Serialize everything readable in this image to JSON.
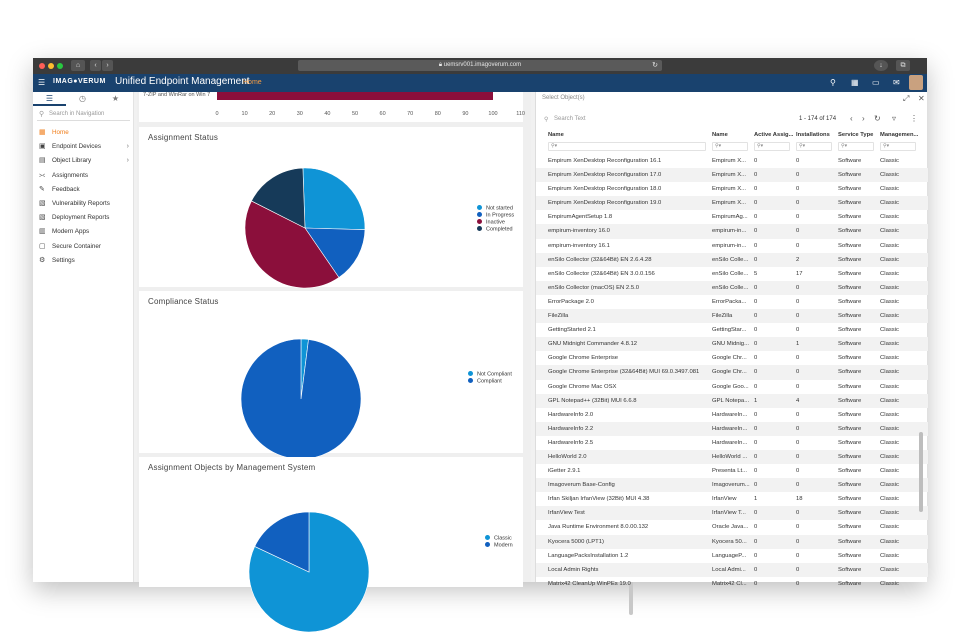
{
  "browser": {
    "url": "uemsrv001.imagoverum.com"
  },
  "header": {
    "logo": "IMAG●VERUM",
    "app_title": "Unified Endpoint Management",
    "home_link": "Home",
    "bg_color": "#19426e"
  },
  "sidebar": {
    "search_placeholder": "Search in Navigation",
    "items": [
      {
        "label": "Home",
        "icon": "home-icon",
        "glyph": "▦",
        "active": true
      },
      {
        "label": "Endpoint Devices",
        "icon": "devices-icon",
        "glyph": "▣",
        "chevron": true
      },
      {
        "label": "Object Library",
        "icon": "library-icon",
        "glyph": "▤",
        "chevron": true
      },
      {
        "label": "Assignments",
        "icon": "share-icon",
        "glyph": "⪥"
      },
      {
        "label": "Feedback",
        "icon": "feedback-icon",
        "glyph": "✎"
      },
      {
        "label": "Vulnerability Reports",
        "icon": "report-icon",
        "glyph": "▧"
      },
      {
        "label": "Deployment Reports",
        "icon": "report-icon",
        "glyph": "▧"
      },
      {
        "label": "Modern Apps",
        "icon": "apps-icon",
        "glyph": "▥"
      },
      {
        "label": "Secure Container",
        "icon": "container-icon",
        "glyph": "▢"
      },
      {
        "label": "Settings",
        "icon": "gear-icon",
        "glyph": "⚙"
      }
    ]
  },
  "top_chart": {
    "label": "7-ZIP and WinRar on Win 7",
    "ticks": [
      "0",
      "10",
      "20",
      "30",
      "40",
      "50",
      "60",
      "70",
      "80",
      "90",
      "100",
      "110"
    ]
  },
  "chart_data": [
    {
      "type": "bar",
      "orientation": "horizontal",
      "categories": [
        "7-ZIP and WinRar on Win 7"
      ],
      "values": [
        100
      ],
      "xlim": [
        0,
        110
      ]
    },
    {
      "type": "pie",
      "title": "Assignment Status",
      "labels": [
        "Not started",
        "In Progress",
        "Inactive",
        "Completed"
      ],
      "values": [
        26,
        15,
        42,
        17
      ],
      "colors": [
        "#0f94d6",
        "#1160bf",
        "#8b0f3b",
        "#163a59"
      ],
      "legend_position": "right"
    },
    {
      "type": "pie",
      "title": "Compliance Status",
      "labels": [
        "Not Compliant",
        "Compliant"
      ],
      "values": [
        2,
        98
      ],
      "colors": [
        "#0f94d6",
        "#1160bf"
      ],
      "legend_position": "right"
    },
    {
      "type": "pie",
      "title": "Assignment Objects by Management System",
      "labels": [
        "Classic",
        "Modern"
      ],
      "values": [
        82,
        18
      ],
      "colors": [
        "#0f94d6",
        "#1160bf"
      ],
      "legend_position": "right"
    }
  ],
  "panel": {
    "header": "Select Object(s)",
    "search_placeholder": "Search Text",
    "pager": "1 - 174 of 174",
    "columns": [
      "Name",
      "Name",
      "Active Assig...",
      "Installations",
      "Service Type",
      "Managemen..."
    ],
    "rows": [
      [
        "Empirum XenDesktop Reconfiguration 16.1",
        "Empirum X...",
        "0",
        "0",
        "Software",
        "Classic"
      ],
      [
        "Empirum XenDesktop Reconfiguration 17.0",
        "Empirum X...",
        "0",
        "0",
        "Software",
        "Classic"
      ],
      [
        "Empirum XenDesktop Reconfiguration 18.0",
        "Empirum X...",
        "0",
        "0",
        "Software",
        "Classic"
      ],
      [
        "Empirum XenDesktop Reconfiguration 19.0",
        "Empirum X...",
        "0",
        "0",
        "Software",
        "Classic"
      ],
      [
        "EmpirumAgentSetup 1.8",
        "EmpirumAg...",
        "0",
        "0",
        "Software",
        "Classic"
      ],
      [
        "empirum-inventory 16.0",
        "empirum-in...",
        "0",
        "0",
        "Software",
        "Classic"
      ],
      [
        "empirum-inventory 16.1",
        "empirum-in...",
        "0",
        "0",
        "Software",
        "Classic"
      ],
      [
        "enSilo Collector (32&64Bit) EN 2.6.4.28",
        "enSilo Colle...",
        "0",
        "2",
        "Software",
        "Classic"
      ],
      [
        "enSilo Collector (32&64Bit) EN 3.0.0.156",
        "enSilo Colle...",
        "5",
        "17",
        "Software",
        "Classic"
      ],
      [
        "enSilo Collector (macOS) EN 2.5.0",
        "enSilo Colle...",
        "0",
        "0",
        "Software",
        "Classic"
      ],
      [
        "ErrorPackage 2.0",
        "ErrorPacka...",
        "0",
        "0",
        "Software",
        "Classic"
      ],
      [
        "FileZilla",
        "FileZilla",
        "0",
        "0",
        "Software",
        "Classic"
      ],
      [
        "GettingStarted 2.1",
        "GettingStar...",
        "0",
        "0",
        "Software",
        "Classic"
      ],
      [
        "GNU Midnight Commander 4.8.12",
        "GNU Midnig...",
        "0",
        "1",
        "Software",
        "Classic"
      ],
      [
        "Google Chrome Enterprise",
        "Google Chr...",
        "0",
        "0",
        "Software",
        "Classic"
      ],
      [
        "Google Chrome Enterprise (32&64Bit) MUI 69.0.3497.081",
        "Google Chr...",
        "0",
        "0",
        "Software",
        "Classic"
      ],
      [
        "Google Chrome Mac OSX",
        "Google Goo...",
        "0",
        "0",
        "Software",
        "Classic"
      ],
      [
        "GPL Notepad++ (32Bit) MUI 6.6.8",
        "GPL Notepa...",
        "1",
        "4",
        "Software",
        "Classic"
      ],
      [
        "HardwareInfo 2.0",
        "HardwareIn...",
        "0",
        "0",
        "Software",
        "Classic"
      ],
      [
        "HardwareInfo 2.2",
        "HardwareIn...",
        "0",
        "0",
        "Software",
        "Classic"
      ],
      [
        "HardwareInfo 2.5",
        "HardwareIn...",
        "0",
        "0",
        "Software",
        "Classic"
      ],
      [
        "HelloWorld 2.0",
        "HelloWorld ...",
        "0",
        "0",
        "Software",
        "Classic"
      ],
      [
        "iGetter 2.9.1",
        "Presenta Lt...",
        "0",
        "0",
        "Software",
        "Classic"
      ],
      [
        "Imagoverum Base-Config",
        "Imagoverum...",
        "0",
        "0",
        "Software",
        "Classic"
      ],
      [
        "Irfan Skiljan IrfanView (32Bit) MUI 4.38",
        "IrfanView",
        "1",
        "18",
        "Software",
        "Classic"
      ],
      [
        "IrfanView Test",
        "IrfanView T...",
        "0",
        "0",
        "Software",
        "Classic"
      ],
      [
        "Java Runtime Environment 8.0.00.132",
        "Oracle Java...",
        "0",
        "0",
        "Software",
        "Classic"
      ],
      [
        "Kyocera 5000 (LPT1)",
        "Kyocera 50...",
        "0",
        "0",
        "Software",
        "Classic"
      ],
      [
        "LanguagePacksInstallation 1.2",
        "LanguageP...",
        "0",
        "0",
        "Software",
        "Classic"
      ],
      [
        "Local Admin Rights",
        "Local Admi...",
        "0",
        "0",
        "Software",
        "Classic"
      ],
      [
        "Matrix42 CleanUp WinPEs 19.0",
        "Matrix42 Cl...",
        "0",
        "0",
        "Software",
        "Classic"
      ]
    ]
  }
}
